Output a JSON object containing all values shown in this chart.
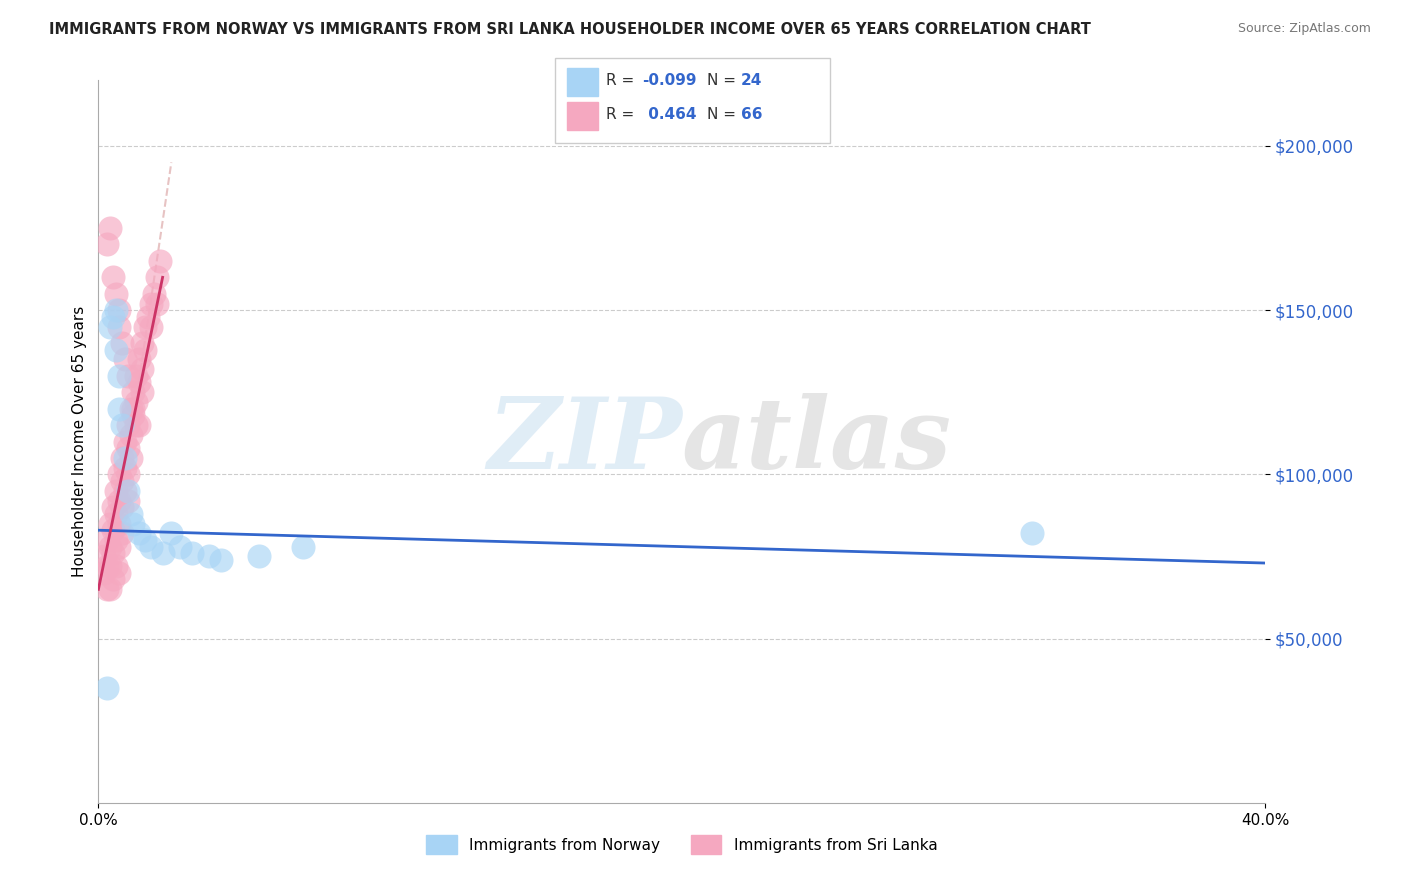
{
  "title": "IMMIGRANTS FROM NORWAY VS IMMIGRANTS FROM SRI LANKA HOUSEHOLDER INCOME OVER 65 YEARS CORRELATION CHART",
  "source": "Source: ZipAtlas.com",
  "ylabel": "Householder Income Over 65 years",
  "xlim": [
    0.0,
    0.4
  ],
  "ylim": [
    0,
    220000
  ],
  "yticks": [
    50000,
    100000,
    150000,
    200000
  ],
  "ytick_labels": [
    "$50,000",
    "$100,000",
    "$150,000",
    "$200,000"
  ],
  "norway_R": -0.099,
  "norway_N": 24,
  "srilanka_R": 0.464,
  "srilanka_N": 66,
  "norway_color": "#a8d4f5",
  "srilanka_color": "#f5a8c0",
  "norway_line_color": "#3366cc",
  "srilanka_line_color": "#cc3366",
  "norway_scatter_x": [
    0.004,
    0.005,
    0.006,
    0.006,
    0.007,
    0.007,
    0.008,
    0.009,
    0.01,
    0.011,
    0.012,
    0.014,
    0.016,
    0.018,
    0.022,
    0.025,
    0.028,
    0.032,
    0.038,
    0.042,
    0.055,
    0.07,
    0.32,
    0.003
  ],
  "norway_scatter_y": [
    145000,
    148000,
    150000,
    138000,
    130000,
    120000,
    115000,
    105000,
    95000,
    88000,
    85000,
    82000,
    80000,
    78000,
    76000,
    82000,
    78000,
    76000,
    75000,
    74000,
    75000,
    78000,
    82000,
    35000
  ],
  "srilanka_scatter_x": [
    0.002,
    0.002,
    0.003,
    0.003,
    0.003,
    0.004,
    0.004,
    0.004,
    0.004,
    0.005,
    0.005,
    0.005,
    0.005,
    0.006,
    0.006,
    0.006,
    0.006,
    0.007,
    0.007,
    0.007,
    0.007,
    0.007,
    0.008,
    0.008,
    0.008,
    0.008,
    0.009,
    0.009,
    0.009,
    0.01,
    0.01,
    0.01,
    0.01,
    0.011,
    0.011,
    0.011,
    0.012,
    0.012,
    0.013,
    0.013,
    0.013,
    0.014,
    0.014,
    0.015,
    0.015,
    0.015,
    0.016,
    0.016,
    0.017,
    0.018,
    0.018,
    0.019,
    0.02,
    0.02,
    0.021,
    0.003,
    0.004,
    0.005,
    0.006,
    0.007,
    0.007,
    0.008,
    0.009,
    0.01,
    0.012,
    0.014
  ],
  "srilanka_scatter_y": [
    75000,
    70000,
    80000,
    72000,
    65000,
    85000,
    78000,
    72000,
    65000,
    90000,
    83000,
    76000,
    68000,
    95000,
    88000,
    80000,
    72000,
    100000,
    92000,
    85000,
    78000,
    70000,
    105000,
    98000,
    90000,
    82000,
    110000,
    102000,
    95000,
    115000,
    108000,
    100000,
    92000,
    120000,
    112000,
    105000,
    125000,
    118000,
    130000,
    122000,
    115000,
    135000,
    128000,
    140000,
    132000,
    125000,
    145000,
    138000,
    148000,
    152000,
    145000,
    155000,
    160000,
    152000,
    165000,
    170000,
    175000,
    160000,
    155000,
    150000,
    145000,
    140000,
    135000,
    130000,
    120000,
    115000
  ],
  "watermark_zip": "ZIP",
  "watermark_atlas": "atlas",
  "background_color": "#ffffff",
  "grid_color": "#cccccc",
  "legend_norway_label": "Immigrants from Norway",
  "legend_srilanka_label": "Immigrants from Sri Lanka"
}
